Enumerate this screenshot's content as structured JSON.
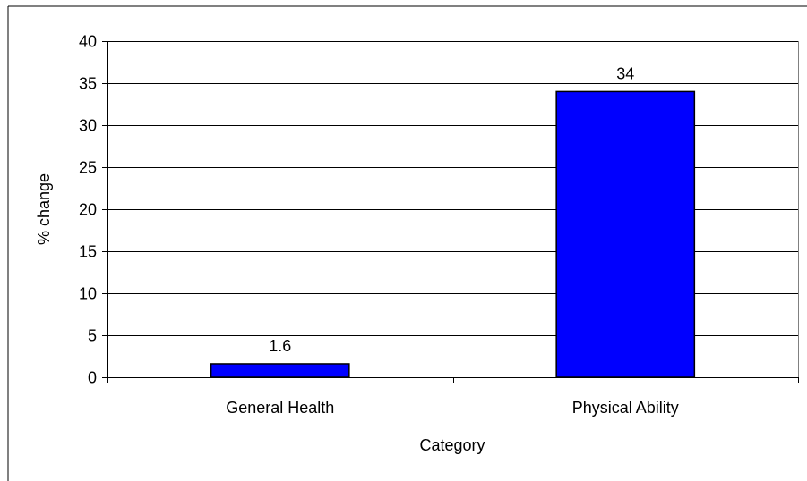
{
  "chart_data": {
    "type": "bar",
    "title": "",
    "xlabel": "Category",
    "ylabel": "% change",
    "categories": [
      "General Health",
      "Physical Ability"
    ],
    "values": [
      1.6,
      34
    ],
    "data_labels": [
      "1.6",
      "34"
    ],
    "ylim": [
      0,
      40
    ],
    "yticks": [
      0,
      5,
      10,
      15,
      20,
      25,
      30,
      35,
      40
    ],
    "grid": true,
    "legend": "none",
    "bar_color": "#0000ff",
    "bar_border_color": "#000000"
  }
}
